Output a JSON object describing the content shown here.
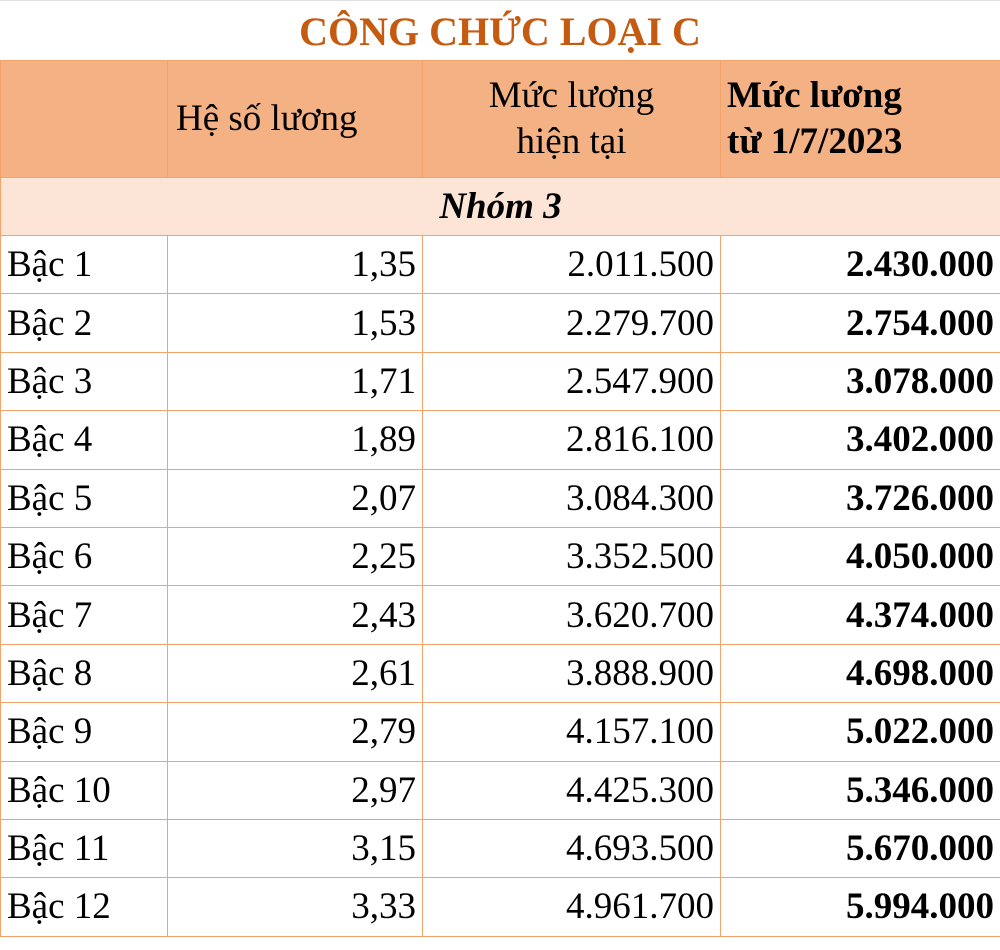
{
  "title": "CÔNG CHỨC LOẠI C",
  "headers": [
    "",
    "Hệ số lương",
    "Mức lương hiện tại",
    "Mức lương từ 1/7/2023"
  ],
  "header_lines": {
    "c2a": "Mức lương",
    "c2b": "hiện tại",
    "c3a": "Mức lương",
    "c3b": "từ 1/7/2023"
  },
  "group": "Nhóm 3",
  "rows": [
    [
      "Bậc 1",
      "1,35",
      "2.011.500",
      "2.430.000"
    ],
    [
      "Bậc 2",
      "1,53",
      "2.279.700",
      "2.754.000"
    ],
    [
      "Bậc 3",
      "1,71",
      "2.547.900",
      "3.078.000"
    ],
    [
      "Bậc 4",
      "1,89",
      "2.816.100",
      "3.402.000"
    ],
    [
      "Bậc 5",
      "2,07",
      "3.084.300",
      "3.726.000"
    ],
    [
      "Bậc 6",
      "2,25",
      "3.352.500",
      "4.050.000"
    ],
    [
      "Bậc 7",
      "2,43",
      "3.620.700",
      "4.374.000"
    ],
    [
      "Bậc 8",
      "2,61",
      "3.888.900",
      "4.698.000"
    ],
    [
      "Bậc 9",
      "2,79",
      "4.157.100",
      "5.022.000"
    ],
    [
      "Bậc 10",
      "2,97",
      "4.425.300",
      "5.346.000"
    ],
    [
      "Bậc 11",
      "3,15",
      "4.693.500",
      "5.670.000"
    ],
    [
      "Bậc 12",
      "3,33",
      "4.961.700",
      "5.994.000"
    ]
  ],
  "colors": {
    "title": "#C55A11",
    "header_bg": "#F4B183",
    "group_bg": "#FCE4D6",
    "border": "#F4A46A"
  }
}
